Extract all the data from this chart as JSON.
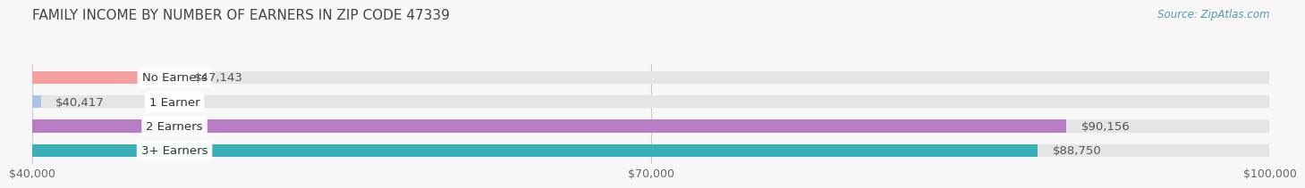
{
  "title": "FAMILY INCOME BY NUMBER OF EARNERS IN ZIP CODE 47339",
  "source": "Source: ZipAtlas.com",
  "categories": [
    "No Earners",
    "1 Earner",
    "2 Earners",
    "3+ Earners"
  ],
  "values": [
    47143,
    40417,
    90156,
    88750
  ],
  "labels": [
    "$47,143",
    "$40,417",
    "$90,156",
    "$88,750"
  ],
  "bar_colors": [
    "#f4a0a0",
    "#aac4e8",
    "#b87cc4",
    "#3aafb8"
  ],
  "bg_color": "#f0f0f0",
  "xlim_min": 40000,
  "xlim_max": 100000,
  "xticklabels": [
    "$40,000",
    "$70,000",
    "$100,000"
  ],
  "xtick_vals": [
    40000,
    70000,
    100000
  ],
  "title_fontsize": 11,
  "label_fontsize": 9.5,
  "tick_fontsize": 9,
  "source_fontsize": 8.5,
  "background_color": "#f7f7f7",
  "bar_height": 0.52
}
